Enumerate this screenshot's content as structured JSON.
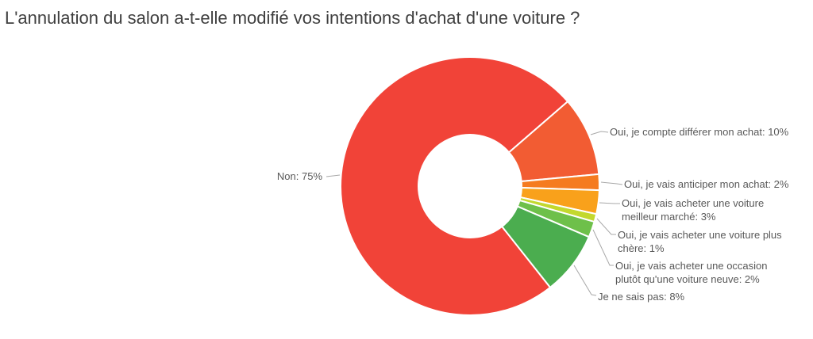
{
  "title": "L'annulation du salon a-t-elle modifié vos intentions d'achat d'une voiture ?",
  "chart_data": {
    "type": "pie",
    "subtype": "donut",
    "title": "L'annulation du salon a-t-elle modifié vos intentions d'achat d'une voiture ?",
    "unit": "%",
    "values_sum": 101,
    "start_angle_deg": 141.7,
    "inner_radius_ratio": 0.4,
    "legend": "none",
    "background": "#FFFFFF",
    "label_color": "#595959",
    "connector_color": "#A8A8A8",
    "slice_border_color": "#FFFFFF",
    "slices": [
      {
        "key": "non",
        "label": "Non",
        "value": 75,
        "color": "#F14338",
        "display_lines": [
          "Non: 75%"
        ]
      },
      {
        "key": "differer",
        "label": "Oui, je compte différer mon achat",
        "value": 10,
        "color": "#F25C33",
        "display_lines": [
          "Oui, je compte différer mon achat: 10%"
        ]
      },
      {
        "key": "anticiper",
        "label": "Oui, je vais anticiper mon achat",
        "value": 2,
        "color": "#F57B20",
        "display_lines": [
          "Oui, je vais anticiper mon achat: 2%"
        ]
      },
      {
        "key": "meilleur",
        "label": "Oui, je vais acheter une voiture meilleur marché",
        "value": 3,
        "color": "#F9A11B",
        "display_lines": [
          "Oui, je vais acheter une voiture",
          "meilleur marché: 3%"
        ]
      },
      {
        "key": "chere",
        "label": "Oui, je vais acheter une voiture plus chère",
        "value": 1,
        "color": "#C3D82E",
        "display_lines": [
          "Oui, je vais acheter une voiture plus",
          "chère: 1%"
        ]
      },
      {
        "key": "occasion",
        "label": "Oui, je vais acheter une occasion plutôt qu'une voiture neuve",
        "value": 2,
        "color": "#6EC04A",
        "display_lines": [
          "Oui, je vais acheter une occasion",
          "plutôt qu'une voiture neuve: 2%"
        ]
      },
      {
        "key": "saispas",
        "label": "Je ne sais pas",
        "value": 8,
        "color": "#4BAD4F",
        "display_lines": [
          "Je ne sais pas: 8%"
        ]
      }
    ]
  }
}
